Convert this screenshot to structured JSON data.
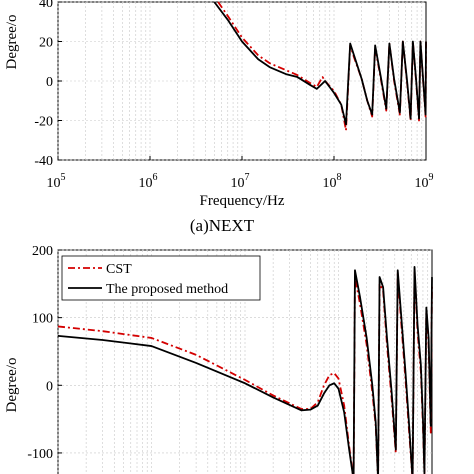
{
  "figure": {
    "caption_a": "(a)NEXT"
  },
  "chart_data": [
    {
      "type": "line",
      "xscale": "log",
      "xlim": [
        100000,
        1000000000
      ],
      "ylim": [
        -40,
        40
      ],
      "xlabel": "Frequency/Hz",
      "ylabel": "Degree/o",
      "grid": true,
      "x_ticks": [
        {
          "base": "10",
          "exp": "5"
        },
        {
          "base": "10",
          "exp": "6"
        },
        {
          "base": "10",
          "exp": "7"
        },
        {
          "base": "10",
          "exp": "8"
        },
        {
          "base": "10",
          "exp": "9"
        }
      ],
      "y_ticks": [
        "-40",
        "-20",
        "0",
        "20",
        "40"
      ],
      "y_tick_values": [
        -40,
        -20,
        0,
        20,
        40
      ],
      "series": [
        {
          "color": "#d40000",
          "dash": "dash-dot",
          "points": [
            [
              5500000,
              40
            ],
            [
              7000000,
              33
            ],
            [
              10000000,
              22
            ],
            [
              15000000,
              13
            ],
            [
              20000000,
              9
            ],
            [
              30000000,
              5.5
            ],
            [
              40000000,
              3
            ],
            [
              55000000,
              -1
            ],
            [
              65000000,
              -3
            ],
            [
              75000000,
              2
            ],
            [
              80000000,
              0
            ],
            [
              100000000,
              -5
            ],
            [
              120000000,
              -12
            ],
            [
              135000000,
              -25
            ],
            [
              150000000,
              18
            ],
            [
              165000000,
              12
            ],
            [
              200000000,
              1
            ],
            [
              230000000,
              -10
            ],
            [
              260000000,
              -18
            ],
            [
              280000000,
              17
            ],
            [
              320000000,
              2
            ],
            [
              370000000,
              -15
            ],
            [
              400000000,
              19
            ],
            [
              450000000,
              0
            ],
            [
              520000000,
              -17
            ],
            [
              560000000,
              20
            ],
            [
              620000000,
              0
            ],
            [
              680000000,
              -20
            ],
            [
              720000000,
              20
            ],
            [
              780000000,
              0
            ],
            [
              840000000,
              -20
            ],
            [
              870000000,
              20
            ],
            [
              930000000,
              0
            ],
            [
              990000000,
              -18
            ],
            [
              1000000000,
              20
            ]
          ]
        },
        {
          "color": "#000000",
          "dash": "solid",
          "points": [
            [
              5000000,
              40
            ],
            [
              7000000,
              31
            ],
            [
              10000000,
              20
            ],
            [
              15000000,
              11
            ],
            [
              20000000,
              7
            ],
            [
              30000000,
              3.5
            ],
            [
              40000000,
              2
            ],
            [
              55000000,
              -2
            ],
            [
              65000000,
              -4
            ],
            [
              80000000,
              0
            ],
            [
              100000000,
              -6
            ],
            [
              120000000,
              -12
            ],
            [
              135000000,
              -22
            ],
            [
              150000000,
              19
            ],
            [
              165000000,
              13
            ],
            [
              200000000,
              1
            ],
            [
              230000000,
              -10
            ],
            [
              260000000,
              -17
            ],
            [
              280000000,
              18
            ],
            [
              320000000,
              3
            ],
            [
              370000000,
              -14
            ],
            [
              400000000,
              19
            ],
            [
              450000000,
              1
            ],
            [
              520000000,
              -16
            ],
            [
              560000000,
              20
            ],
            [
              620000000,
              1
            ],
            [
              680000000,
              -19
            ],
            [
              720000000,
              20
            ],
            [
              780000000,
              1
            ],
            [
              840000000,
              -19
            ],
            [
              870000000,
              20
            ],
            [
              930000000,
              1
            ],
            [
              990000000,
              -17
            ],
            [
              1000000000,
              20
            ]
          ]
        }
      ]
    },
    {
      "type": "line",
      "xscale": "log",
      "xlim": [
        100000,
        1000000000
      ],
      "ylim": [
        -140,
        200
      ],
      "xlabel": "",
      "ylabel": "Degree/o",
      "grid": true,
      "legend_position": "top-left",
      "y_ticks": [
        "-100",
        "0",
        "100",
        "200"
      ],
      "y_tick_values": [
        -100,
        0,
        100,
        200
      ],
      "series": [
        {
          "name": "CST",
          "color": "#d40000",
          "dash": "dash-dot",
          "points": [
            [
              100000,
              87
            ],
            [
              300000,
              80
            ],
            [
              1000000,
              70
            ],
            [
              3000000,
              45
            ],
            [
              10000000,
              8
            ],
            [
              20000000,
              -15
            ],
            [
              40000000,
              -35
            ],
            [
              50000000,
              -35
            ],
            [
              60000000,
              -25
            ],
            [
              70000000,
              0
            ],
            [
              80000000,
              15
            ],
            [
              90000000,
              18
            ],
            [
              100000000,
              10
            ],
            [
              115000000,
              -30
            ],
            [
              130000000,
              -90
            ],
            [
              145000000,
              -140
            ],
            [
              150000000,
              160
            ],
            [
              170000000,
              120
            ],
            [
              200000000,
              60
            ],
            [
              230000000,
              -10
            ],
            [
              250000000,
              -60
            ],
            [
              265000000,
              -140
            ],
            [
              275000000,
              150
            ],
            [
              300000000,
              140
            ],
            [
              330000000,
              60
            ],
            [
              370000000,
              -20
            ],
            [
              410000000,
              -100
            ],
            [
              430000000,
              165
            ],
            [
              470000000,
              90
            ],
            [
              520000000,
              10
            ],
            [
              570000000,
              -70
            ],
            [
              620000000,
              -140
            ],
            [
              650000000,
              170
            ],
            [
              700000000,
              80
            ],
            [
              760000000,
              20
            ],
            [
              800000000,
              -60
            ],
            [
              830000000,
              -130
            ],
            [
              870000000,
              110
            ],
            [
              920000000,
              60
            ],
            [
              970000000,
              -70
            ],
            [
              1000000000,
              150
            ]
          ]
        },
        {
          "name": "The proposed method",
          "color": "#000000",
          "dash": "solid",
          "points": [
            [
              100000,
              73
            ],
            [
              300000,
              67
            ],
            [
              1000000,
              58
            ],
            [
              3000000,
              33
            ],
            [
              10000000,
              3
            ],
            [
              20000000,
              -18
            ],
            [
              40000000,
              -37
            ],
            [
              50000000,
              -36
            ],
            [
              60000000,
              -30
            ],
            [
              70000000,
              -12
            ],
            [
              80000000,
              0
            ],
            [
              90000000,
              3
            ],
            [
              100000000,
              -5
            ],
            [
              115000000,
              -40
            ],
            [
              130000000,
              -95
            ],
            [
              145000000,
              -140
            ],
            [
              150000000,
              170
            ],
            [
              170000000,
              130
            ],
            [
              200000000,
              70
            ],
            [
              230000000,
              0
            ],
            [
              250000000,
              -55
            ],
            [
              265000000,
              -140
            ],
            [
              275000000,
              160
            ],
            [
              300000000,
              145
            ],
            [
              330000000,
              70
            ],
            [
              370000000,
              -10
            ],
            [
              410000000,
              -95
            ],
            [
              430000000,
              170
            ],
            [
              470000000,
              100
            ],
            [
              520000000,
              20
            ],
            [
              570000000,
              -60
            ],
            [
              620000000,
              -140
            ],
            [
              650000000,
              175
            ],
            [
              700000000,
              90
            ],
            [
              760000000,
              30
            ],
            [
              800000000,
              -50
            ],
            [
              830000000,
              -130
            ],
            [
              870000000,
              115
            ],
            [
              920000000,
              70
            ],
            [
              970000000,
              -60
            ],
            [
              1000000000,
              160
            ]
          ]
        }
      ]
    }
  ]
}
